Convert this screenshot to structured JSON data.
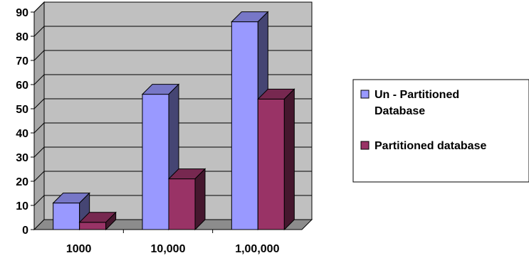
{
  "chart_data": {
    "type": "bar",
    "style": "3d-clustered-column",
    "categories": [
      "1000",
      "10,000",
      "1,00,000"
    ],
    "series": [
      {
        "name": "Un - Partitioned Database",
        "values": [
          11,
          56,
          86
        ],
        "color": "#9999FF"
      },
      {
        "name": "Partitioned database",
        "values": [
          3,
          21,
          54
        ],
        "color": "#993366"
      }
    ],
    "ylim": [
      0,
      90
    ],
    "yticks": [
      0,
      10,
      20,
      30,
      40,
      50,
      60,
      70,
      80,
      90
    ],
    "grid": true,
    "wall_color": "#C0C0C0",
    "legend_position": "right",
    "legend_lines": [
      [
        "Un - Partitioned",
        "Database"
      ],
      [
        "Partitioned database"
      ]
    ]
  }
}
